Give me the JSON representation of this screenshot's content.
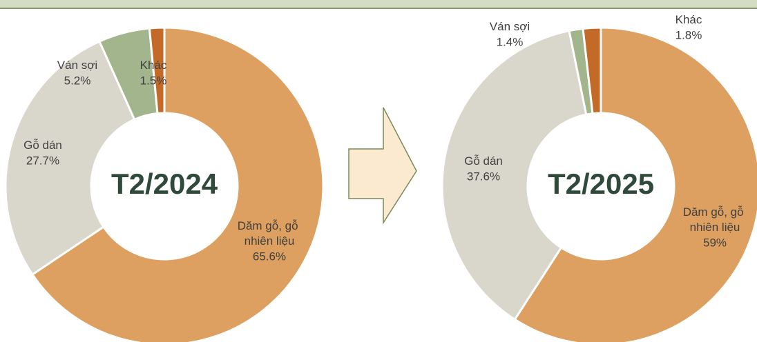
{
  "chart_data": [
    {
      "type": "pie",
      "title": "T2/2024",
      "categories": [
        "Dăm gỗ, gỗ nhiên liệu",
        "Gỗ dán",
        "Ván sợi",
        "Khác"
      ],
      "values": [
        65.6,
        27.7,
        5.2,
        1.5
      ],
      "value_labels": [
        "65.6%",
        "27.7%",
        "5.2%",
        "1.5%"
      ],
      "colors": [
        "#dda060",
        "#d9d7cc",
        "#a3b58d",
        "#c46a28"
      ]
    },
    {
      "type": "pie",
      "title": "T2/2025",
      "categories": [
        "Dăm gỗ, gỗ nhiên liệu",
        "Gỗ dán",
        "Ván sợi",
        "Khác"
      ],
      "values": [
        59,
        37.6,
        1.4,
        1.8
      ],
      "value_labels": [
        "59%",
        "37.6%",
        "1.4%",
        "1.8%"
      ],
      "colors": [
        "#dda060",
        "#d9d7cc",
        "#a3b58d",
        "#c46a28"
      ]
    }
  ]
}
